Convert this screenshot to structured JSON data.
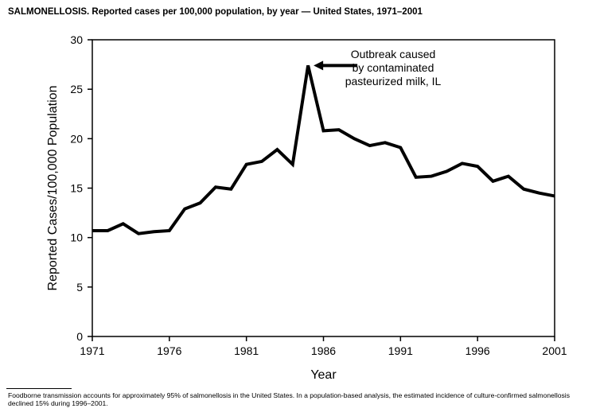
{
  "title": "SALMONELLOSIS. Reported cases per 100,000 population, by year — United States, 1971–2001",
  "footnote": "Foodborne transmission accounts for approximately 95% of salmonellosis in the United States. In a population-based analysis, the estimated incidence of culture-confirmed salmonellosis declined 15% during 1996–2001.",
  "chart_data": {
    "type": "line",
    "xlabel": "Year",
    "ylabel": "Reported Cases/100,000 Population",
    "xlim": [
      1971,
      2001
    ],
    "ylim": [
      0,
      30
    ],
    "xticks": [
      1971,
      1976,
      1981,
      1986,
      1991,
      1996,
      2001
    ],
    "yticks": [
      0,
      5,
      10,
      15,
      20,
      25,
      30
    ],
    "grid": false,
    "line_color": "#000000",
    "x": [
      1971,
      1972,
      1973,
      1974,
      1975,
      1976,
      1977,
      1978,
      1979,
      1980,
      1981,
      1982,
      1983,
      1984,
      1985,
      1986,
      1987,
      1988,
      1989,
      1990,
      1991,
      1992,
      1993,
      1994,
      1995,
      1996,
      1997,
      1998,
      1999,
      2000,
      2001
    ],
    "y": [
      10.7,
      10.7,
      11.4,
      10.4,
      10.6,
      10.7,
      12.9,
      13.5,
      15.1,
      14.9,
      17.4,
      17.7,
      18.9,
      17.4,
      27.4,
      20.8,
      20.9,
      20.0,
      19.3,
      19.6,
      19.1,
      16.1,
      16.2,
      16.7,
      17.5,
      17.2,
      15.7,
      16.2,
      14.9,
      14.5,
      14.2
    ],
    "annotations": [
      {
        "x": 1985,
        "y": 27.4,
        "lines": [
          "Outbreak caused",
          "by contaminated",
          "pasteurized milk, IL"
        ]
      }
    ]
  }
}
